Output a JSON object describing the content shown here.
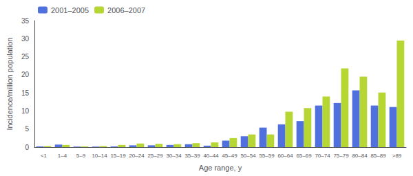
{
  "chart_data": {
    "type": "bar",
    "xlabel": "Age range, y",
    "ylabel": "Incidence/million population",
    "categories": [
      "<1",
      "1–4",
      "5–9",
      "10–14",
      "15–19",
      "20–24",
      "25–29",
      "30–34",
      "35–39",
      "40–44",
      "45–49",
      "50–54",
      "55–59",
      "60–64",
      "65–69",
      "70–74",
      "75–79",
      "80–84",
      "85–89",
      ">89"
    ],
    "series": [
      {
        "name": "2001–2005",
        "values": [
          0.2,
          0.7,
          0.15,
          0.15,
          0.2,
          0.5,
          0.5,
          0.6,
          0.8,
          0.4,
          1.8,
          3.0,
          5.4,
          6.3,
          7.2,
          11.5,
          12.2,
          15.7,
          11.5,
          11.1
        ]
      },
      {
        "name": "2006–2007",
        "values": [
          0.3,
          0.6,
          0.2,
          0.3,
          0.6,
          1.0,
          0.9,
          0.8,
          1.1,
          1.3,
          2.5,
          3.5,
          3.5,
          9.8,
          10.8,
          14.0,
          21.8,
          19.5,
          15.1,
          29.5
        ]
      }
    ],
    "ylim": [
      0,
      35
    ],
    "yticks": [
      0,
      5,
      10,
      15,
      20,
      25,
      30,
      35
    ],
    "grid": false,
    "legend": "upper left"
  }
}
